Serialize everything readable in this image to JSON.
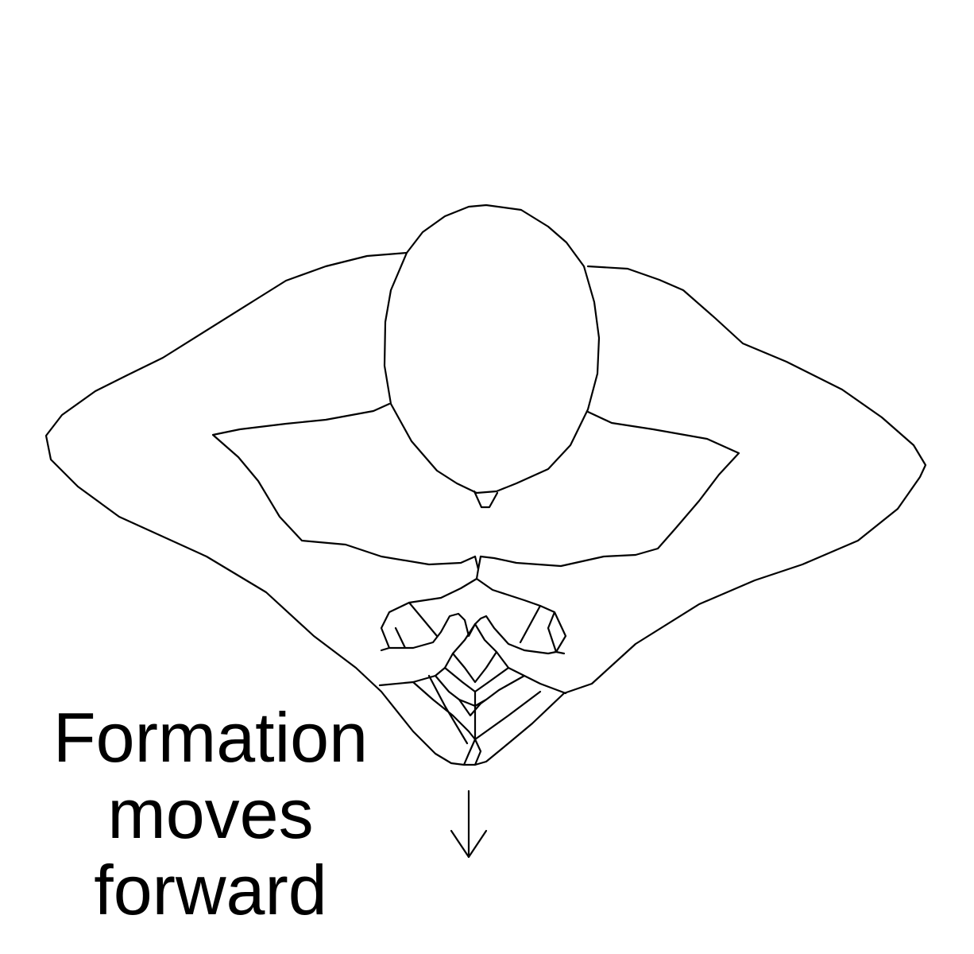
{
  "caption": {
    "line1": "Formation",
    "line2": "moves",
    "line3": "forward"
  },
  "colors": {
    "background": "#ffffff",
    "ink": "#000000"
  },
  "icons": {
    "direction_arrow": "arrow-down-icon"
  }
}
